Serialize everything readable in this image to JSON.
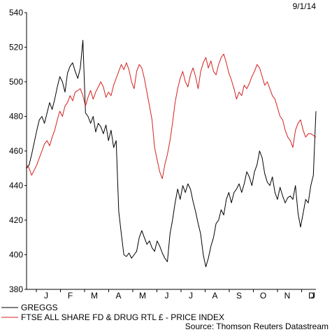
{
  "chart_data": {
    "type": "line",
    "date_label": "9/1/14",
    "source": "Source: Thomson Reuters Datastream",
    "ylim": [
      380,
      540
    ],
    "y_ticks": [
      380,
      400,
      420,
      440,
      460,
      480,
      500,
      520,
      540
    ],
    "x_tick_labels": [
      "J",
      "F",
      "M",
      "A",
      "M",
      "J",
      "J",
      "A",
      "S",
      "O",
      "N",
      "D",
      "J"
    ],
    "grid": false,
    "legend_position": "bottom-left",
    "series": [
      {
        "name": "GREGGS",
        "color": "#000000",
        "points": [
          [
            0,
            450
          ],
          [
            1,
            452
          ],
          [
            2,
            458
          ],
          [
            3,
            465
          ],
          [
            4,
            472
          ],
          [
            5,
            478
          ],
          [
            6,
            480
          ],
          [
            7,
            476
          ],
          [
            8,
            482
          ],
          [
            9,
            488
          ],
          [
            10,
            484
          ],
          [
            11,
            490
          ],
          [
            12,
            497
          ],
          [
            13,
            503
          ],
          [
            14,
            500
          ],
          [
            15,
            494
          ],
          [
            16,
            505
          ],
          [
            17,
            509
          ],
          [
            18,
            511
          ],
          [
            19,
            506
          ],
          [
            20,
            502
          ],
          [
            21,
            508
          ],
          [
            22,
            524
          ],
          [
            23,
            482
          ],
          [
            24,
            480
          ],
          [
            25,
            476
          ],
          [
            26,
            480
          ],
          [
            27,
            471
          ],
          [
            28,
            476
          ],
          [
            29,
            474
          ],
          [
            30,
            470
          ],
          [
            31,
            475
          ],
          [
            32,
            466
          ],
          [
            33,
            472
          ],
          [
            34,
            462
          ],
          [
            35,
            466
          ],
          [
            36,
            425
          ],
          [
            37,
            412
          ],
          [
            38,
            400
          ],
          [
            39,
            399
          ],
          [
            40,
            401
          ],
          [
            41,
            398
          ],
          [
            42,
            400
          ],
          [
            43,
            402
          ],
          [
            44,
            410
          ],
          [
            45,
            414
          ],
          [
            46,
            410
          ],
          [
            47,
            406
          ],
          [
            48,
            408
          ],
          [
            49,
            404
          ],
          [
            50,
            402
          ],
          [
            51,
            408
          ],
          [
            52,
            405
          ],
          [
            53,
            401
          ],
          [
            54,
            398
          ],
          [
            55,
            396
          ],
          [
            56,
            412
          ],
          [
            57,
            420
          ],
          [
            58,
            430
          ],
          [
            59,
            438
          ],
          [
            60,
            432
          ],
          [
            61,
            440
          ],
          [
            62,
            436
          ],
          [
            63,
            441
          ],
          [
            64,
            438
          ],
          [
            65,
            431
          ],
          [
            66,
            425
          ],
          [
            67,
            418
          ],
          [
            68,
            412
          ],
          [
            69,
            400
          ],
          [
            70,
            393
          ],
          [
            71,
            398
          ],
          [
            72,
            405
          ],
          [
            73,
            410
          ],
          [
            74,
            418
          ],
          [
            75,
            420
          ],
          [
            76,
            426
          ],
          [
            77,
            423
          ],
          [
            78,
            432
          ],
          [
            79,
            436
          ],
          [
            80,
            430
          ],
          [
            81,
            436
          ],
          [
            82,
            438
          ],
          [
            83,
            441
          ],
          [
            84,
            436
          ],
          [
            85,
            441
          ],
          [
            86,
            448
          ],
          [
            87,
            445
          ],
          [
            88,
            440
          ],
          [
            89,
            448
          ],
          [
            90,
            452
          ],
          [
            91,
            460
          ],
          [
            92,
            456
          ],
          [
            93,
            447
          ],
          [
            94,
            442
          ],
          [
            95,
            440
          ],
          [
            96,
            445
          ],
          [
            97,
            436
          ],
          [
            98,
            432
          ],
          [
            99,
            439
          ],
          [
            100,
            434
          ],
          [
            101,
            430
          ],
          [
            102,
            433
          ],
          [
            103,
            434
          ],
          [
            104,
            432
          ],
          [
            105,
            440
          ],
          [
            106,
            424
          ],
          [
            107,
            416
          ],
          [
            108,
            424
          ],
          [
            109,
            432
          ],
          [
            110,
            430
          ],
          [
            111,
            440
          ],
          [
            112,
            446
          ],
          [
            113,
            483
          ]
        ]
      },
      {
        "name": "FTSE ALL SHARE FD & DRUG RTL £ - PRICE INDEX",
        "color": "#d42020",
        "points": [
          [
            0,
            452
          ],
          [
            1,
            450
          ],
          [
            2,
            446
          ],
          [
            3,
            449
          ],
          [
            4,
            452
          ],
          [
            5,
            456
          ],
          [
            6,
            460
          ],
          [
            7,
            464
          ],
          [
            8,
            466
          ],
          [
            9,
            463
          ],
          [
            10,
            468
          ],
          [
            11,
            472
          ],
          [
            12,
            478
          ],
          [
            13,
            483
          ],
          [
            14,
            480
          ],
          [
            15,
            486
          ],
          [
            16,
            488
          ],
          [
            17,
            492
          ],
          [
            18,
            489
          ],
          [
            19,
            494
          ],
          [
            20,
            495
          ],
          [
            21,
            496
          ],
          [
            22,
            492
          ],
          [
            23,
            486
          ],
          [
            24,
            491
          ],
          [
            25,
            495
          ],
          [
            26,
            490
          ],
          [
            27,
            494
          ],
          [
            28,
            497
          ],
          [
            29,
            500
          ],
          [
            30,
            497
          ],
          [
            31,
            491
          ],
          [
            32,
            494
          ],
          [
            33,
            492
          ],
          [
            34,
            498
          ],
          [
            35,
            502
          ],
          [
            36,
            506
          ],
          [
            37,
            510
          ],
          [
            38,
            507
          ],
          [
            39,
            511
          ],
          [
            40,
            507
          ],
          [
            41,
            500
          ],
          [
            42,
            496
          ],
          [
            43,
            506
          ],
          [
            44,
            510
          ],
          [
            45,
            508
          ],
          [
            46,
            502
          ],
          [
            47,
            494
          ],
          [
            48,
            486
          ],
          [
            49,
            478
          ],
          [
            50,
            462
          ],
          [
            51,
            455
          ],
          [
            52,
            448
          ],
          [
            53,
            444
          ],
          [
            54,
            452
          ],
          [
            55,
            458
          ],
          [
            56,
            466
          ],
          [
            57,
            476
          ],
          [
            58,
            488
          ],
          [
            59,
            496
          ],
          [
            60,
            502
          ],
          [
            61,
            506
          ],
          [
            62,
            500
          ],
          [
            63,
            497
          ],
          [
            64,
            504
          ],
          [
            65,
            508
          ],
          [
            66,
            503
          ],
          [
            67,
            496
          ],
          [
            68,
            506
          ],
          [
            69,
            511
          ],
          [
            70,
            514
          ],
          [
            71,
            508
          ],
          [
            72,
            512
          ],
          [
            73,
            506
          ],
          [
            74,
            504
          ],
          [
            75,
            510
          ],
          [
            76,
            514
          ],
          [
            77,
            516
          ],
          [
            78,
            511
          ],
          [
            79,
            505
          ],
          [
            80,
            501
          ],
          [
            81,
            496
          ],
          [
            82,
            490
          ],
          [
            83,
            494
          ],
          [
            84,
            492
          ],
          [
            85,
            498
          ],
          [
            86,
            496
          ],
          [
            87,
            499
          ],
          [
            88,
            503
          ],
          [
            89,
            506
          ],
          [
            90,
            510
          ],
          [
            91,
            508
          ],
          [
            92,
            503
          ],
          [
            93,
            498
          ],
          [
            94,
            500
          ],
          [
            95,
            496
          ],
          [
            96,
            492
          ],
          [
            97,
            490
          ],
          [
            98,
            485
          ],
          [
            99,
            480
          ],
          [
            100,
            478
          ],
          [
            101,
            472
          ],
          [
            102,
            468
          ],
          [
            103,
            466
          ],
          [
            104,
            462
          ],
          [
            105,
            472
          ],
          [
            106,
            476
          ],
          [
            107,
            478
          ],
          [
            108,
            472
          ],
          [
            109,
            468
          ],
          [
            110,
            470
          ],
          [
            111,
            470
          ],
          [
            112,
            469
          ],
          [
            113,
            468
          ]
        ]
      }
    ]
  }
}
